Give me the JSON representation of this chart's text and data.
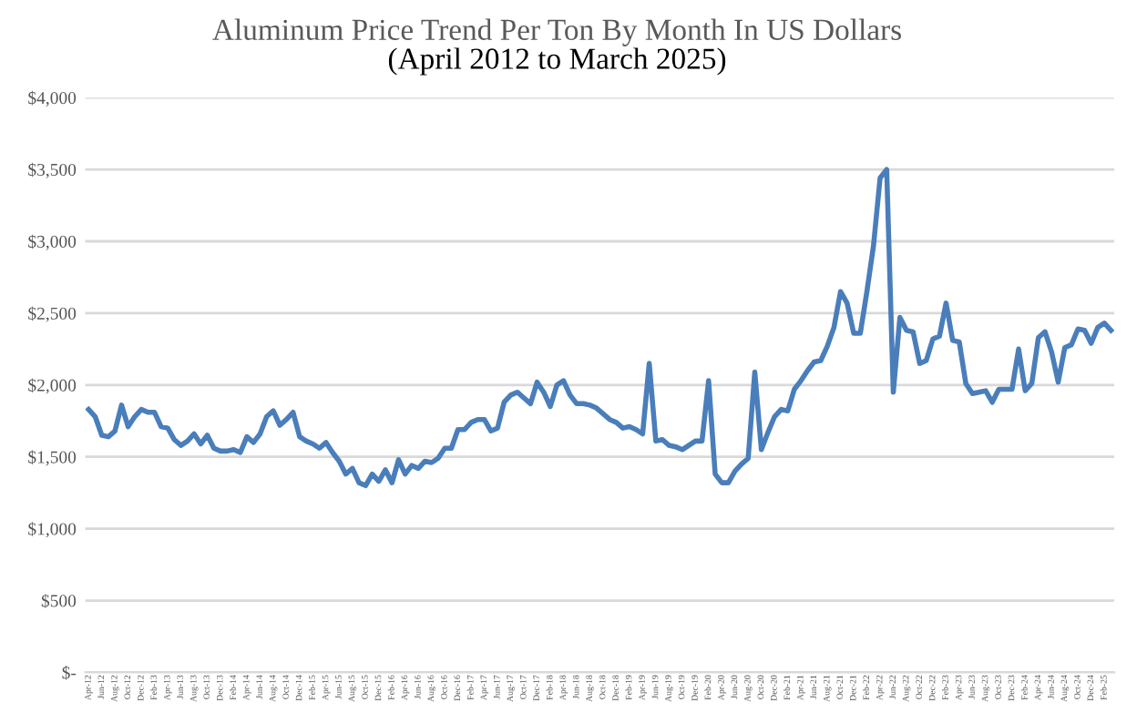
{
  "chart_data": {
    "type": "line",
    "title": "Aluminum Price Trend Per Ton By Month In US Dollars",
    "subtitle": "(April 2012 to March 2025)",
    "categories": [
      "Apr-12",
      null,
      "Jun-12",
      null,
      "Aug-12",
      null,
      "Oct-12",
      null,
      "Dec-12",
      null,
      "Feb-13",
      null,
      "Apr-13",
      null,
      "Jun-13",
      null,
      "Aug-13",
      null,
      "Oct-13",
      null,
      "Dec-13",
      null,
      "Feb-14",
      null,
      "Apr-14",
      null,
      "Jun-14",
      null,
      "Aug-14",
      null,
      "Oct-14",
      null,
      "Dec-14",
      null,
      "Feb-15",
      null,
      "Apr-15",
      null,
      "Jun-15",
      null,
      "Aug-15",
      null,
      "Oct-15",
      null,
      "Dec-15",
      null,
      "Feb-16",
      null,
      "Apr-16",
      null,
      "Jun-16",
      null,
      "Aug-16",
      null,
      "Oct-16",
      null,
      "Dec-16",
      null,
      "Feb-17",
      null,
      "Apr-17",
      null,
      "Jun-17",
      null,
      "Aug-17",
      null,
      "Oct-17",
      null,
      "Dec-17",
      null,
      "Feb-18",
      null,
      "Apr-18",
      null,
      "Jun-18",
      null,
      "Aug-18",
      null,
      "Oct-18",
      null,
      "Dec-18",
      null,
      "Feb-19",
      null,
      "Apr-19",
      null,
      "Jun-19",
      null,
      "Aug-19",
      null,
      "Oct-19",
      null,
      "Dec-19",
      null,
      "Feb-20",
      null,
      "Apr-20",
      null,
      "Jun-20",
      null,
      "Aug-20",
      null,
      "Oct-20",
      null,
      "Dec-20",
      null,
      "Feb-21",
      null,
      "Apr-21",
      null,
      "Jun-21",
      null,
      "Aug-21",
      null,
      "Oct-21",
      null,
      "Dec-21",
      null,
      "Feb-22",
      null,
      "Apr-22",
      null,
      "Jun-22",
      null,
      "Aug-22",
      null,
      "Oct-22",
      null,
      "Dec-22",
      null,
      "Feb-23",
      null,
      "Apr-23",
      null,
      "Jun-23",
      null,
      "Aug-23",
      null,
      "Oct-23",
      null,
      "Dec-23",
      null,
      "Feb-24",
      null,
      "Apr-24",
      null,
      "Jun-24",
      null,
      "Aug-24",
      null,
      "Oct-24",
      null,
      "Dec-24",
      null,
      "Feb-25",
      null
    ],
    "series": [
      {
        "color": "#4a7ebb",
        "values": [
          1830,
          1780,
          1650,
          1640,
          1680,
          1860,
          1710,
          1780,
          1830,
          1810,
          1810,
          1710,
          1700,
          1620,
          1580,
          1610,
          1660,
          1590,
          1650,
          1560,
          1540,
          1540,
          1550,
          1530,
          1640,
          1600,
          1660,
          1780,
          1820,
          1720,
          1760,
          1810,
          1640,
          1610,
          1590,
          1560,
          1600,
          1530,
          1470,
          1380,
          1420,
          1320,
          1300,
          1380,
          1330,
          1410,
          1320,
          1480,
          1380,
          1440,
          1420,
          1470,
          1460,
          1490,
          1560,
          1560,
          1690,
          1690,
          1740,
          1760,
          1760,
          1680,
          1700,
          1880,
          1930,
          1950,
          1910,
          1870,
          2020,
          1950,
          1850,
          2000,
          2030,
          1930,
          1870,
          1870,
          1860,
          1840,
          1800,
          1760,
          1740,
          1700,
          1710,
          1690,
          1660,
          2150,
          1610,
          1620,
          1580,
          1570,
          1550,
          1580,
          1610,
          1610,
          2030,
          1380,
          1320,
          1320,
          1400,
          1450,
          1490,
          2090,
          1550,
          1670,
          1780,
          1830,
          1820,
          1970,
          2030,
          2100,
          2160,
          2170,
          2270,
          2400,
          2650,
          2570,
          2360,
          2360,
          2650,
          2970,
          3440,
          3500,
          1950,
          2470,
          2380,
          2370,
          2150,
          2170,
          2320,
          2340,
          2570,
          2310,
          2300,
          2010,
          1940,
          1950,
          1960,
          1880,
          1970,
          1970,
          1970,
          2250,
          1960,
          2010,
          2330,
          2370,
          2230,
          2020,
          2260,
          2280,
          2390,
          2380,
          2290,
          2400,
          2430,
          2380
        ]
      }
    ],
    "ylim": [
      0,
      4000
    ],
    "yticks": [
      {
        "value": 0,
        "label": "$-"
      },
      {
        "value": 500,
        "label": "$500"
      },
      {
        "value": 1000,
        "label": "$1,000"
      },
      {
        "value": 1500,
        "label": "$1,500"
      },
      {
        "value": 2000,
        "label": "$2,000"
      },
      {
        "value": 2500,
        "label": "$2,500"
      },
      {
        "value": 3000,
        "label": "$3,000"
      },
      {
        "value": 3500,
        "label": "$3,500"
      },
      {
        "value": 4000,
        "label": "$4,000"
      }
    ],
    "grid": "y",
    "marker": "none",
    "line_style": "solid",
    "legend": false
  }
}
